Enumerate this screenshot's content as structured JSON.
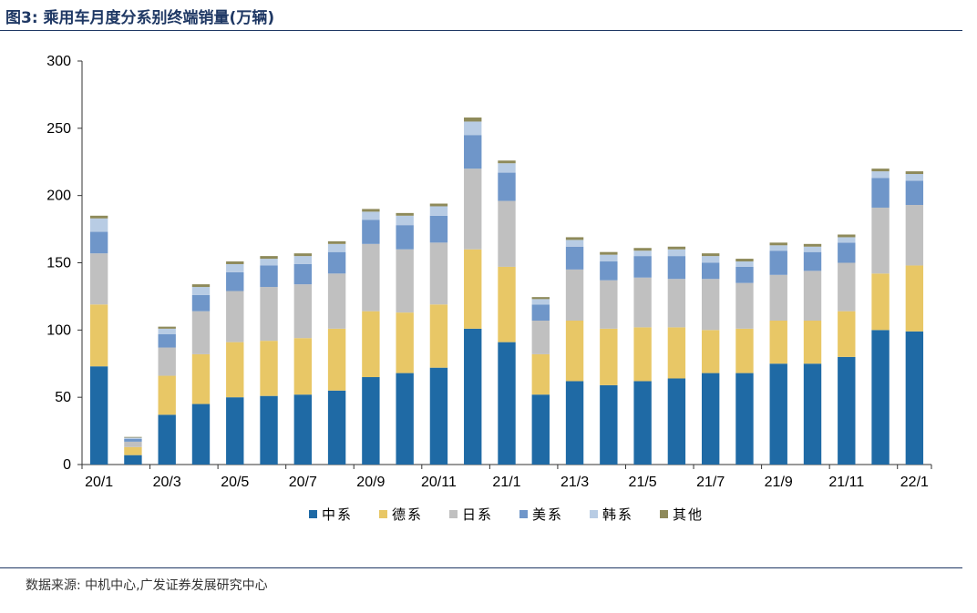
{
  "figure": {
    "title": "图3:  乘用车月度分系别终端销量(万辆)",
    "source": "数据来源:  中机中心,广发证券发展研究中心"
  },
  "chart_data": {
    "type": "bar",
    "stacked": true,
    "title": "",
    "xlabel": "",
    "ylabel": "",
    "ylim": [
      0,
      300
    ],
    "yticks": [
      0,
      50,
      100,
      150,
      200,
      250,
      300
    ],
    "grid": false,
    "legend_position": "bottom",
    "categories": [
      "20/1",
      "20/2",
      "20/3",
      "20/4",
      "20/5",
      "20/6",
      "20/7",
      "20/8",
      "20/9",
      "20/10",
      "20/11",
      "20/12",
      "21/1",
      "21/2",
      "21/3",
      "21/4",
      "21/5",
      "21/6",
      "21/7",
      "21/8",
      "21/9",
      "21/10",
      "21/11",
      "21/12",
      "22/1"
    ],
    "tick_labels": [
      "20/1",
      "",
      "20/3",
      "",
      "20/5",
      "",
      "20/7",
      "",
      "20/9",
      "",
      "20/11",
      "",
      "21/1",
      "",
      "21/3",
      "",
      "21/5",
      "",
      "21/7",
      "",
      "21/9",
      "",
      "21/11",
      "",
      "22/1"
    ],
    "series": [
      {
        "name": "中系",
        "color": "#1f6aa5",
        "values": [
          73,
          7,
          37,
          45,
          50,
          51,
          52,
          55,
          65,
          68,
          72,
          101,
          91,
          52,
          62,
          59,
          62,
          64,
          68,
          68,
          75,
          75,
          80,
          100,
          99
        ]
      },
      {
        "name": "德系",
        "color": "#e8c766",
        "values": [
          46,
          6,
          29,
          37,
          41,
          41,
          42,
          46,
          49,
          45,
          47,
          59,
          56,
          30,
          45,
          42,
          40,
          38,
          32,
          33,
          32,
          32,
          34,
          42,
          49
        ]
      },
      {
        "name": "日系",
        "color": "#c0c0c0",
        "values": [
          38,
          4,
          21,
          32,
          38,
          40,
          40,
          41,
          50,
          47,
          46,
          60,
          49,
          25,
          38,
          36,
          37,
          36,
          38,
          34,
          34,
          37,
          36,
          49,
          45
        ]
      },
      {
        "name": "美系",
        "color": "#6f96c9",
        "values": [
          16,
          2,
          10,
          12,
          14,
          16,
          15,
          16,
          18,
          18,
          20,
          25,
          21,
          12,
          17,
          14,
          16,
          17,
          12,
          12,
          18,
          14,
          15,
          22,
          18
        ]
      },
      {
        "name": "韩系",
        "color": "#b8cce4",
        "values": [
          10,
          1,
          4,
          6,
          6,
          5,
          6,
          6,
          6,
          7,
          7,
          10,
          7,
          4,
          5,
          5,
          4,
          5,
          5,
          4,
          4,
          4,
          4,
          5,
          5
        ]
      },
      {
        "name": "其他",
        "color": "#8e8a5a",
        "values": [
          2,
          0.5,
          1.5,
          2,
          2,
          2,
          2,
          2,
          2,
          2,
          2,
          3,
          2,
          1.5,
          2,
          2,
          2,
          2,
          2,
          2,
          2,
          2,
          2,
          2,
          2
        ]
      }
    ]
  }
}
